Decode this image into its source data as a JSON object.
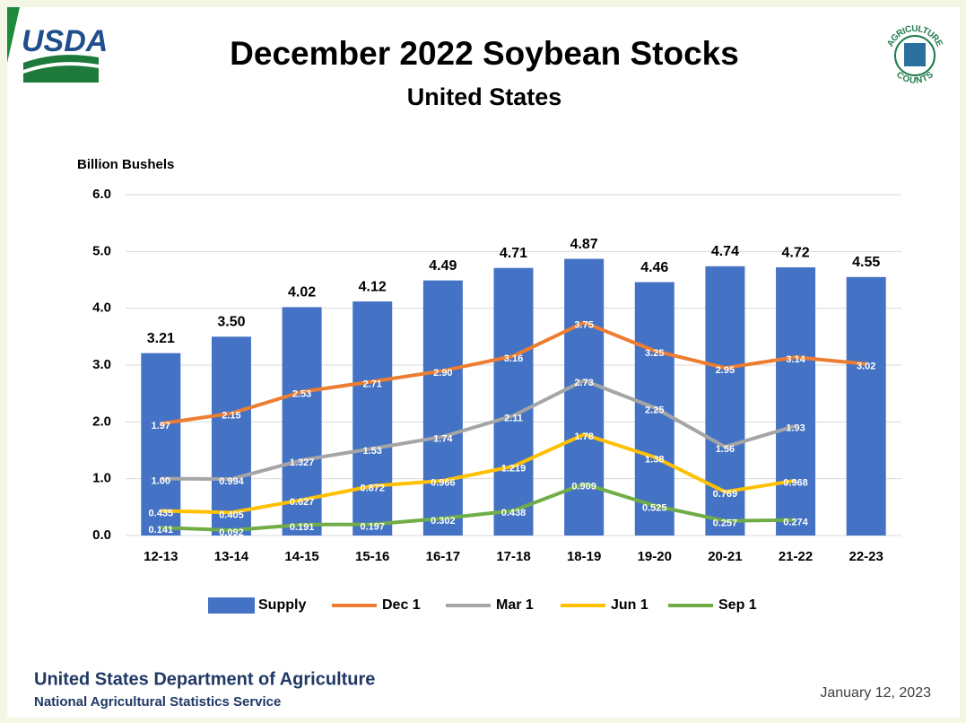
{
  "logo": "USDA",
  "badge": {
    "top": "AGRICULTURE",
    "bottom": "COUNTS"
  },
  "footer": {
    "department": "United States Department of Agriculture",
    "service": "National Agricultural Statistics Service",
    "date": "January 12, 2023"
  },
  "chart_data": {
    "type": "bar",
    "title": "December 2022 Soybean Stocks",
    "subtitle": "United States",
    "y_label": "Billion Bushels",
    "categories": [
      "12-13",
      "13-14",
      "14-15",
      "15-16",
      "16-17",
      "17-18",
      "18-19",
      "19-20",
      "20-21",
      "21-22",
      "22-23"
    ],
    "ylim": [
      0,
      6
    ],
    "yticks": [
      {
        "value": 0,
        "label": "0.0"
      },
      {
        "value": 1,
        "label": "1.0"
      },
      {
        "value": 2,
        "label": "2.0"
      },
      {
        "value": 3,
        "label": "3.0"
      },
      {
        "value": 4,
        "label": "4.0"
      },
      {
        "value": 5,
        "label": "5.0"
      },
      {
        "value": 6,
        "label": "6.0"
      }
    ],
    "grid": true,
    "legend": "bottom",
    "series": [
      {
        "name": "Supply",
        "type": "bar",
        "color": "#4472c4",
        "values": [
          3.21,
          3.5,
          4.02,
          4.12,
          4.49,
          4.71,
          4.87,
          4.46,
          4.74,
          4.72,
          4.55
        ],
        "value_labels": [
          "3.21",
          "3.50",
          "4.02",
          "4.12",
          "4.49",
          "4.71",
          "4.87",
          "4.46",
          "4.74",
          "4.72",
          "4.55"
        ]
      },
      {
        "name": "Dec 1",
        "type": "line",
        "color": "#ed7d31",
        "values": [
          1.97,
          2.15,
          2.53,
          2.71,
          2.9,
          3.16,
          3.75,
          3.25,
          2.95,
          3.14,
          3.02
        ],
        "value_labels": [
          "1.97",
          "2.15",
          "2.53",
          "2.71",
          "2.90",
          "3.16",
          "3.75",
          "3.25",
          "2.95",
          "3.14",
          "3.02"
        ]
      },
      {
        "name": "Mar 1",
        "type": "line",
        "color": "#a5a5a5",
        "values": [
          1.0,
          0.994,
          1.327,
          1.53,
          1.74,
          2.11,
          2.73,
          2.25,
          1.56,
          1.93,
          null
        ],
        "value_labels": [
          "1.00",
          "0.994",
          "1.327",
          "1.53",
          "1.74",
          "2.11",
          "2.73",
          "2.25",
          "1.56",
          "1.93",
          null
        ]
      },
      {
        "name": "Jun 1",
        "type": "line",
        "color": "#ffc000",
        "values": [
          0.435,
          0.405,
          0.627,
          0.872,
          0.966,
          1.219,
          1.78,
          1.38,
          0.769,
          0.968,
          null
        ],
        "value_labels": [
          "0.435",
          "0.405",
          "0.627",
          "0.872",
          "0.966",
          "1.219",
          "1.78",
          "1.38",
          "0.769",
          "0.968",
          null
        ]
      },
      {
        "name": "Sep 1",
        "type": "line",
        "color": "#70ad47",
        "values": [
          0.141,
          0.092,
          0.191,
          0.197,
          0.302,
          0.438,
          0.909,
          0.525,
          0.257,
          0.274,
          null
        ],
        "value_labels": [
          "0.141",
          "0.092",
          "0.191",
          "0.197",
          "0.302",
          "0.438",
          "0.909",
          "0.525",
          "0.257",
          "0.274",
          null
        ]
      }
    ]
  }
}
